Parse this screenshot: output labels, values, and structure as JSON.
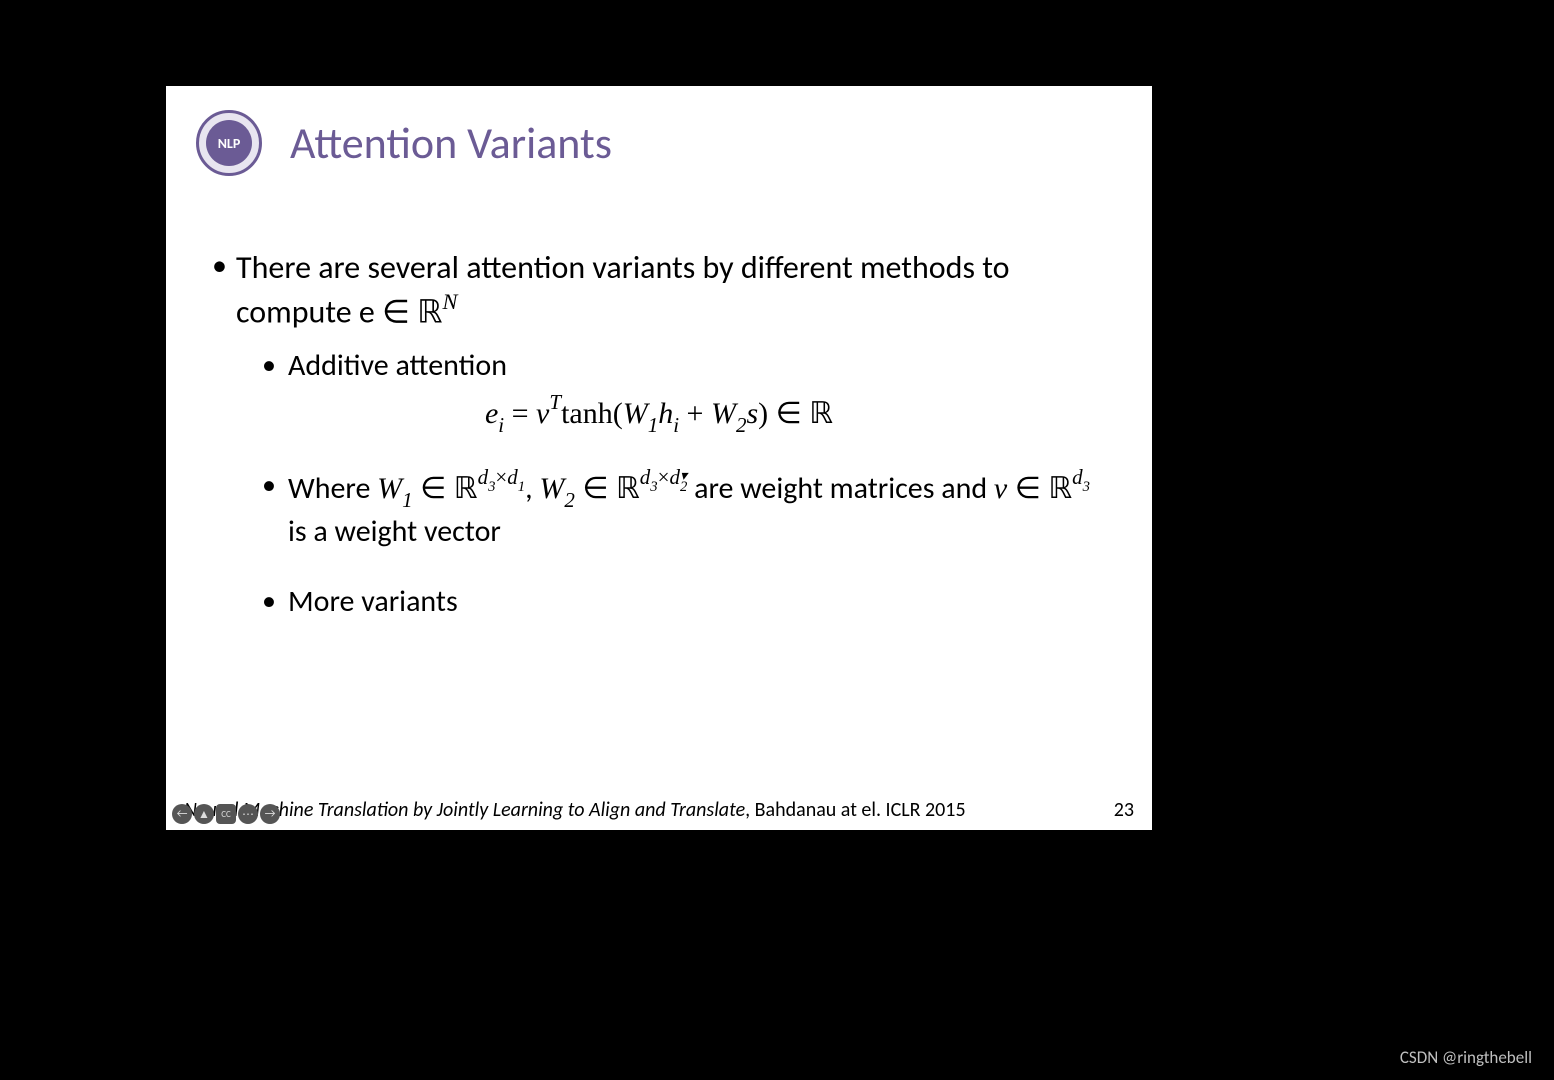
{
  "colors": {
    "page_bg": "#000000",
    "slide_bg": "#ffffff",
    "title_color": "#6b5b95",
    "text_color": "#000000",
    "logo_border": "#6b5b95",
    "logo_bg": "#e8e5f0",
    "control_bg": "#555555",
    "watermark_color": "#bfbfbf"
  },
  "logo_text": "NLP",
  "title": "Attention Variants",
  "bullets": {
    "main": "There are several attention variants by different methods to compute e ∈ ℝ",
    "main_sup": "N",
    "additive": "Additive attention",
    "formula_parts": {
      "lhs": "e",
      "lhs_sub": "i",
      "eq": " = ",
      "v": "v",
      "vT": "T",
      "tanh": "tanh(",
      "W1": "W",
      "W1_sub": "1",
      "h": "h",
      "h_sub": "i",
      "plus": "  + ",
      "W2": "W",
      "W2_sub": "2",
      "s": "s",
      "close": ") ∈ ℝ"
    },
    "where_pre": "Where ",
    "where_W1": "W",
    "where_W1_sub": "1",
    "where_in1": " ∈ ℝ",
    "where_exp1a": "d",
    "where_exp1a_sub": "3",
    "where_exp1_times": "×",
    "where_exp1b": "d",
    "where_exp1b_sub": "1",
    "where_comma": ", ",
    "where_W2": "W",
    "where_W2_sub": "2",
    "where_in2": " ∈ ℝ",
    "where_exp2a": "d",
    "where_exp2a_sub": "3",
    "where_exp2_times": "×",
    "where_exp2b": "d",
    "where_exp2b_sub": "2",
    "where_mid": " are weight matrices and ",
    "where_v": "v",
    "where_v_in": " ∈ ℝ",
    "where_v_exp": "d",
    "where_v_exp_sub": "3",
    "where_tail": " is a weight vector",
    "more": "More variants"
  },
  "footer": {
    "citation_italic": "Neural Machine Translation by Jointly Learning to Align and Translate",
    "citation_rest": ", Bahdanau at el.  ICLR 2015",
    "page": "23"
  },
  "watermark": "CSDN @ringthebell",
  "controls": [
    "←",
    "▲",
    "CC",
    "⋯",
    "→"
  ]
}
